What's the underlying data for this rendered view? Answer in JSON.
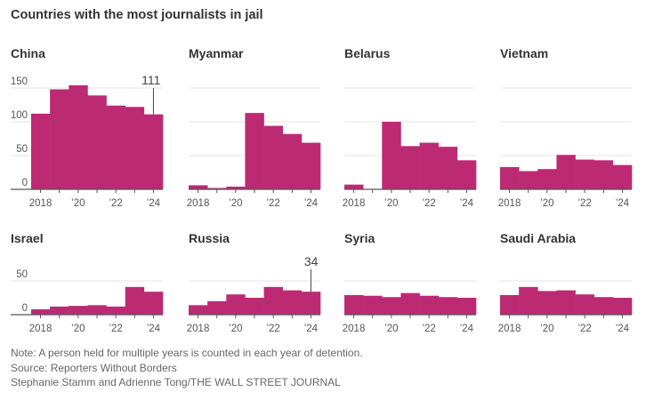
{
  "title": "Countries with the most journalists in jail",
  "notes": [
    "Note: A person held for multiple years is counted in each year of detention.",
    "Source: Reporters Without Borders",
    "Stephanie Stamm and Adrienne Tong/THE WALL STREET JOURNAL"
  ],
  "colors": {
    "bar": "#bc2a74",
    "grid": "#e6e6e6",
    "axis": "#555555"
  },
  "chart_data": {
    "type": "bar",
    "title": "Countries with the most journalists in jail",
    "years": [
      2018,
      2019,
      2020,
      2021,
      2022,
      2023,
      2024
    ],
    "xtick_labels": [
      "2018",
      "’20",
      "’22",
      "’24"
    ],
    "panels": [
      {
        "name": "China",
        "values": [
          112,
          148,
          154,
          139,
          124,
          122,
          111
        ],
        "yticks": [
          "0",
          "50",
          "100",
          "150"
        ],
        "ylim": [
          0,
          150
        ],
        "annotation": "111"
      },
      {
        "name": "Myanmar",
        "values": [
          6,
          2,
          4,
          113,
          94,
          82,
          69
        ],
        "ylim": [
          0,
          150
        ]
      },
      {
        "name": "Belarus",
        "values": [
          7,
          0,
          100,
          64,
          69,
          63,
          43
        ],
        "ylim": [
          0,
          150
        ]
      },
      {
        "name": "Vietnam",
        "values": [
          33,
          27,
          30,
          51,
          44,
          43,
          36
        ],
        "ylim": [
          0,
          150
        ]
      },
      {
        "name": "Israel",
        "values": [
          8,
          12,
          13,
          14,
          12,
          41,
          34
        ],
        "yticks": [
          "0",
          "50"
        ],
        "ylim": [
          0,
          50
        ]
      },
      {
        "name": "Russia",
        "values": [
          14,
          20,
          30,
          25,
          41,
          36,
          34
        ],
        "ylim": [
          0,
          50
        ],
        "annotation": "34"
      },
      {
        "name": "Syria",
        "values": [
          29,
          28,
          26,
          32,
          28,
          26,
          25
        ],
        "ylim": [
          0,
          50
        ]
      },
      {
        "name": "Saudi Arabia",
        "values": [
          29,
          41,
          35,
          36,
          30,
          26,
          25
        ],
        "ylim": [
          0,
          50
        ]
      }
    ]
  }
}
